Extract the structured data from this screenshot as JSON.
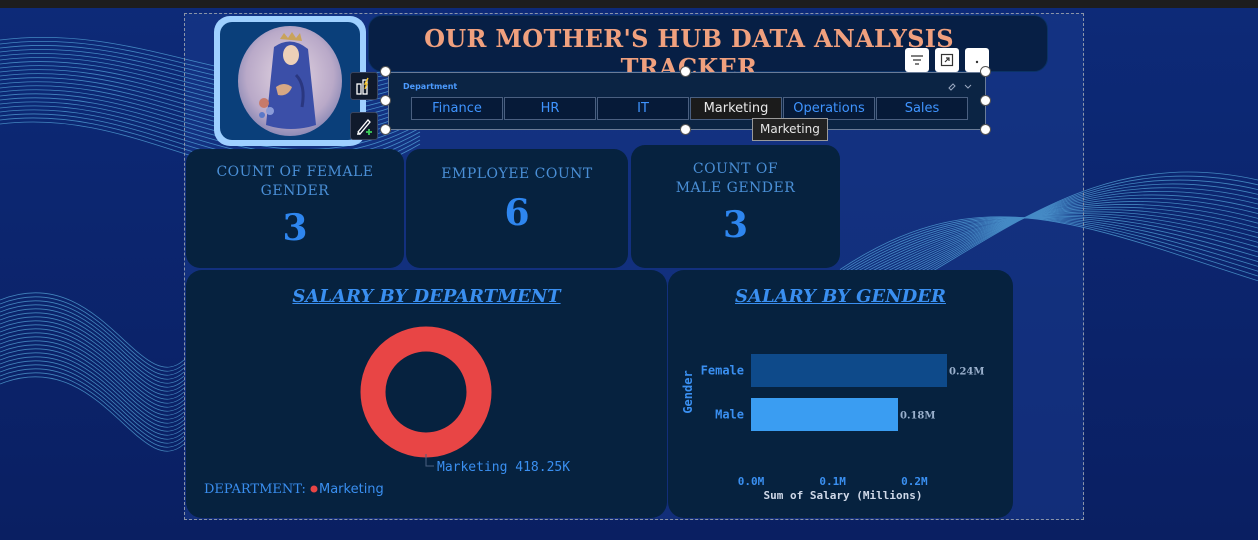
{
  "dashboard": {
    "title": "OUR MOTHER'S HUB DATA ANALYSIS TRACKER"
  },
  "slicer": {
    "title": "Department",
    "options": [
      "Finance",
      "HR",
      "IT",
      "Marketing",
      "Operations",
      "Sales"
    ],
    "selected": "Marketing",
    "tooltip": "Marketing"
  },
  "kpis": {
    "female": {
      "label": "COUNT OF FEMALE GENDER",
      "value": "3"
    },
    "employees": {
      "label": "EMPLOYEE COUNT",
      "value": "6"
    },
    "male": {
      "label": "COUNT OF MALE GENDER",
      "value": "3"
    }
  },
  "icons": {
    "header": [
      "filter-icon",
      "focus-mode-icon",
      "more-options-icon"
    ],
    "side": [
      "build-visual-icon",
      "format-visual-icon"
    ],
    "slicer": [
      "eraser-icon",
      "chevron-down-icon"
    ]
  },
  "colors": {
    "title": "#f0a07e",
    "donut": "#e84545",
    "bar_female": "#0e4a8a",
    "bar_male": "#3a9df2",
    "accent": "#3a8ff0"
  },
  "chart_data": [
    {
      "type": "pie",
      "title": "SALARY BY DEPARTMENT",
      "legend_title": "DEPARTMENT:",
      "legend_placement": "bottom-left",
      "categories": [
        "Marketing"
      ],
      "values": [
        418.25
      ],
      "unit": "K",
      "data_labels": [
        "Marketing 418.25K"
      ]
    },
    {
      "type": "bar",
      "orientation": "horizontal",
      "title": "SALARY BY GENDER",
      "categories": [
        "Female",
        "Male"
      ],
      "values": [
        0.24,
        0.18
      ],
      "data_labels": [
        "0.24M",
        "0.18M"
      ],
      "xlabel": "Sum of Salary (Millions)",
      "ylabel": "Gender",
      "xticks": [
        "0.0M",
        "0.1M",
        "0.2M"
      ],
      "xlim": [
        0,
        0.24
      ]
    }
  ]
}
